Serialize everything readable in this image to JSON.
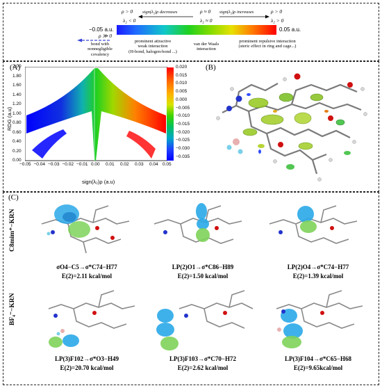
{
  "legend": {
    "rho_pos_left": "ρ > 0",
    "lambda_neg": "λ₂ < 0",
    "sign_decreases": "sign(λ₂)ρ decreases",
    "rho_approx_zero": "ρ ≈ 0",
    "lambda_approx_zero": "λ₂ ≈ 0",
    "sign_increases": "sign(λ₂)ρ increases",
    "rho_pos_right": "ρ > 0",
    "lambda_pos": "λ₂ > 0",
    "left_value": "−0.05 a.u.",
    "right_value": "0.05 a.u.",
    "rho_pos_under": "ρ ≫ 0",
    "bond_text": [
      "bond with",
      "nonnegligible",
      "covalency"
    ],
    "attractive_text": [
      "prominent attractive",
      "weak interaction",
      "(H-bond, halogen-bond ...)"
    ],
    "vdw_text": [
      "van der Waals",
      "interaction"
    ],
    "repulsive_text": [
      "prominent repulsive interaction",
      "(steric effect in ring and cage...)"
    ]
  },
  "panel_a": {
    "label": "(A)",
    "ylabel": "RDG (a.u)",
    "xlabel": "sign(λ₂)ρ (a.u)",
    "yticks": [
      "2.00",
      "1.80",
      "1.60",
      "1.40",
      "1.20",
      "1.00",
      "0.80",
      "0.60",
      "0.40",
      "0.20",
      "0.00"
    ],
    "xticks": [
      "−0.05",
      "−0.04",
      "−0.03",
      "−0.02",
      "−0.01",
      "0.00",
      "0.01",
      "0.02",
      "0.03",
      "0.04",
      "0.05"
    ],
    "colorbar_ticks": [
      "0.020",
      "0.015",
      "0.010",
      "0.005",
      "0.000",
      "−0.005",
      "−0.010",
      "−0.015",
      "−0.020",
      "−0.025",
      "−0.030",
      "−0.035"
    ]
  },
  "panel_b": {
    "label": "(B)"
  },
  "panel_c": {
    "label": "(C)",
    "row1_label": "C8mim⁺−KRN",
    "row2_label": "BF₄⁻−KRN",
    "captions": [
      {
        "line1": "σO4−C5→σ*C74−H77",
        "line2": "E(2)=2.11 kcal/mol"
      },
      {
        "line1": "LP(2)O1→σ*C86−H89",
        "line2": "E(2)=1.50 kcal/mol"
      },
      {
        "line1": "LP(2)O4→σ*C74−H77",
        "line2": "E(2)=1.39 kcal/mol"
      },
      {
        "line1": "LP(3)F102→σ*O3−H49",
        "line2": "E(2)=20.70 kcal/mol"
      },
      {
        "line1": "LP(3)F103→σ*C70−H72",
        "line2": "E(2)=2.62 kcal/mol"
      },
      {
        "line1": "LP(3)F104→σ*C65−H68",
        "line2": "E(2)=9.65kcal/mol"
      }
    ]
  }
}
